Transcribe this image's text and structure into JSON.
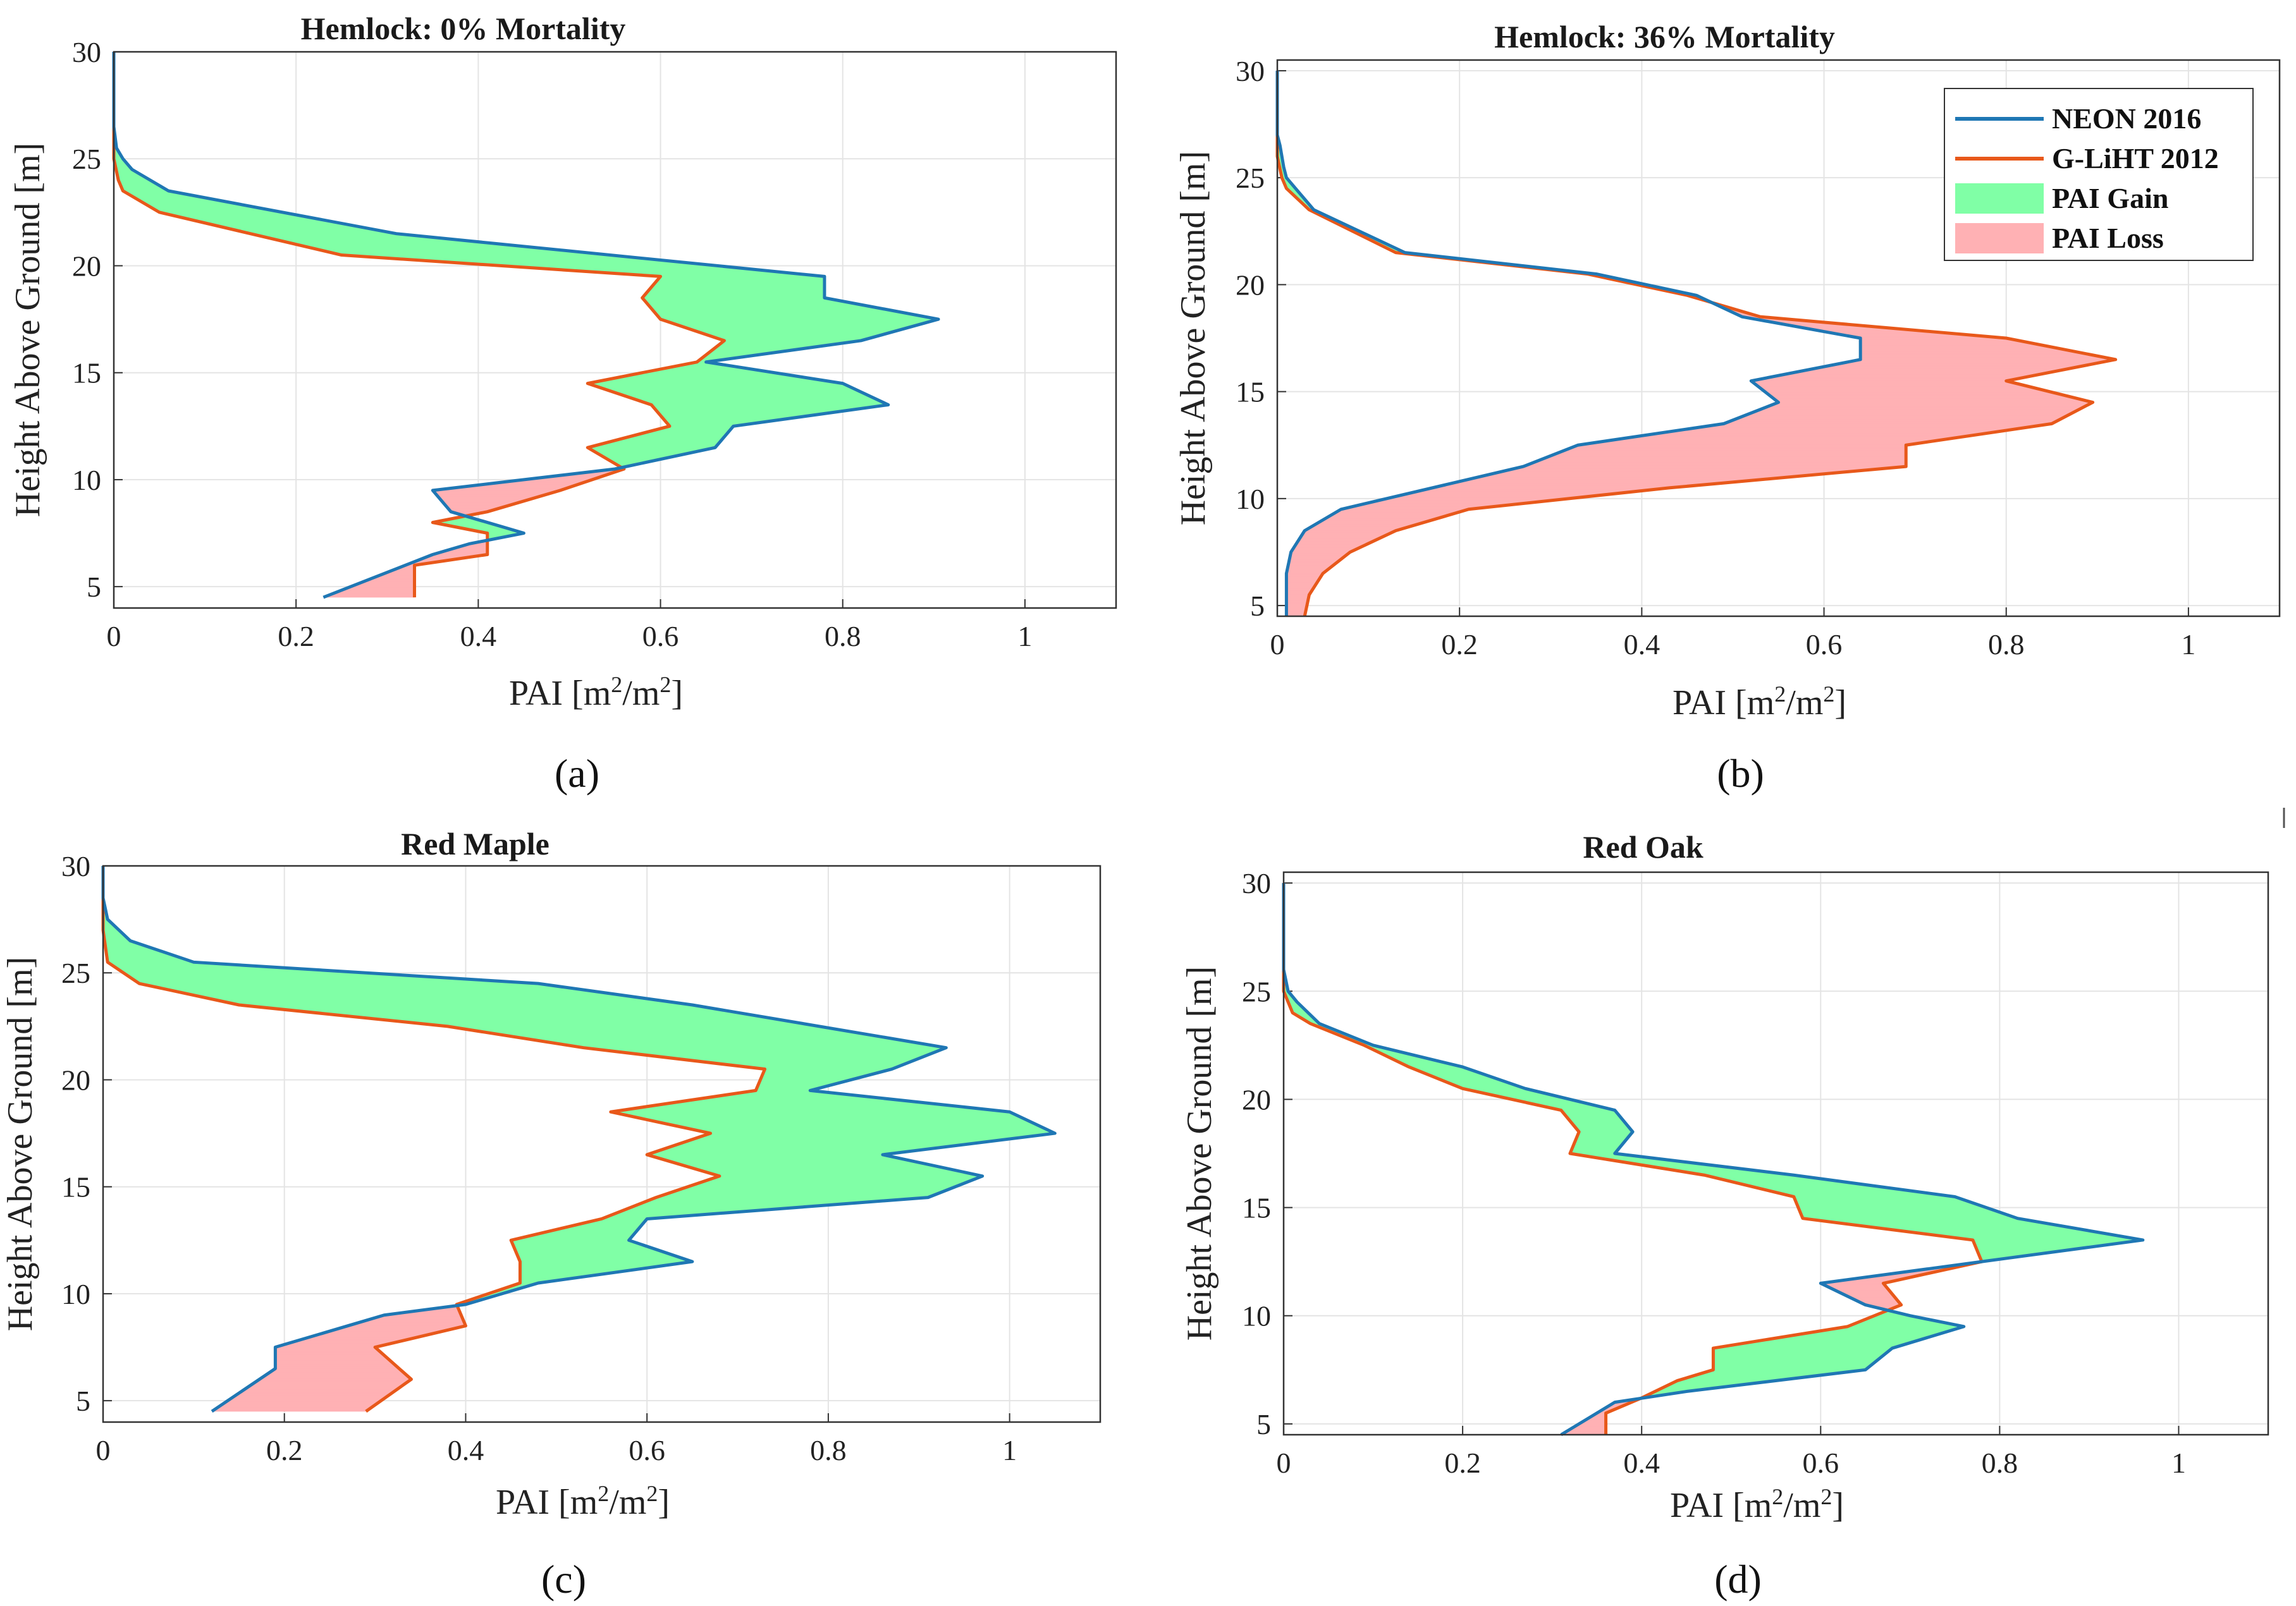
{
  "colors": {
    "neon": "#1f77b4",
    "gliht": "#e8581a",
    "gain": "#80ffa6",
    "loss": "#ffb1b4"
  },
  "legend": {
    "neon": "NEON 2016",
    "gliht": "G-LiHT 2012",
    "gain": "PAI Gain",
    "loss": "PAI Loss"
  },
  "chart_data": [
    {
      "panel": "(a)",
      "type": "line",
      "title": "Hemlock: 0% Mortality",
      "xlabel": "PAI [m²/m²]",
      "ylabel": "Height Above Ground [m]",
      "xlim": [
        0,
        1.1
      ],
      "ylim": [
        4,
        30
      ],
      "xticks": [
        "0",
        "0.2",
        "0.4",
        "0.6",
        "0.8",
        "1"
      ],
      "yticks": [
        "5",
        "10",
        "15",
        "20",
        "25",
        "30"
      ],
      "series": [
        {
          "name": "NEON 2016",
          "points": [
            [
              0,
              30
            ],
            [
              0,
              26.5
            ],
            [
              0.003,
              25.5
            ],
            [
              0.01,
              25
            ],
            [
              0.02,
              24.5
            ],
            [
              0.06,
              23.5
            ],
            [
              0.31,
              21.5
            ],
            [
              0.78,
              19.5
            ],
            [
              0.78,
              18.5
            ],
            [
              0.905,
              17.5
            ],
            [
              0.82,
              16.5
            ],
            [
              0.65,
              15.5
            ],
            [
              0.8,
              14.5
            ],
            [
              0.85,
              13.5
            ],
            [
              0.68,
              12.5
            ],
            [
              0.66,
              11.5
            ],
            [
              0.55,
              10.5
            ],
            [
              0.35,
              9.5
            ],
            [
              0.37,
              8.5
            ],
            [
              0.45,
              7.5
            ],
            [
              0.39,
              7
            ],
            [
              0.35,
              6.5
            ],
            [
              0.23,
              4.5
            ]
          ]
        },
        {
          "name": "G-LiHT 2012",
          "points": [
            [
              0,
              30
            ],
            [
              0,
              26
            ],
            [
              0,
              25
            ],
            [
              0.005,
              24
            ],
            [
              0.01,
              23.5
            ],
            [
              0.05,
              22.5
            ],
            [
              0.25,
              20.5
            ],
            [
              0.6,
              19.5
            ],
            [
              0.58,
              18.5
            ],
            [
              0.6,
              17.5
            ],
            [
              0.67,
              16.5
            ],
            [
              0.64,
              15.5
            ],
            [
              0.52,
              14.5
            ],
            [
              0.59,
              13.5
            ],
            [
              0.61,
              12.5
            ],
            [
              0.52,
              11.5
            ],
            [
              0.56,
              10.5
            ],
            [
              0.49,
              9.5
            ],
            [
              0.41,
              8.5
            ],
            [
              0.35,
              8
            ],
            [
              0.41,
              7.5
            ],
            [
              0.41,
              6.5
            ],
            [
              0.33,
              6
            ],
            [
              0.33,
              4.5
            ]
          ]
        }
      ]
    },
    {
      "panel": "(b)",
      "type": "line",
      "title": "Hemlock: 36% Mortality",
      "xlabel": "PAI [m²/m²]",
      "ylabel": "Height Above Ground [m]",
      "xlim": [
        0,
        1.1
      ],
      "ylim": [
        4.5,
        30.5
      ],
      "xticks": [
        "0",
        "0.2",
        "0.4",
        "0.6",
        "0.8",
        "1"
      ],
      "yticks": [
        "5",
        "10",
        "15",
        "20",
        "25",
        "30"
      ],
      "legend": "top-right",
      "series": [
        {
          "name": "NEON 2016",
          "points": [
            [
              0,
              30
            ],
            [
              0,
              27
            ],
            [
              0.003,
              26.5
            ],
            [
              0.007,
              25.5
            ],
            [
              0.01,
              25
            ],
            [
              0.02,
              24.5
            ],
            [
              0.04,
              23.5
            ],
            [
              0.14,
              21.5
            ],
            [
              0.35,
              20.5
            ],
            [
              0.46,
              19.5
            ],
            [
              0.51,
              18.5
            ],
            [
              0.64,
              17.5
            ],
            [
              0.64,
              16.5
            ],
            [
              0.52,
              15.5
            ],
            [
              0.55,
              14.5
            ],
            [
              0.49,
              13.5
            ],
            [
              0.33,
              12.5
            ],
            [
              0.27,
              11.5
            ],
            [
              0.07,
              9.5
            ],
            [
              0.03,
              8.5
            ],
            [
              0.015,
              7.5
            ],
            [
              0.01,
              6.5
            ],
            [
              0.01,
              4.5
            ]
          ]
        },
        {
          "name": "G-LiHT 2012",
          "points": [
            [
              0,
              30
            ],
            [
              0,
              27
            ],
            [
              0,
              26
            ],
            [
              0.005,
              25
            ],
            [
              0.01,
              24.5
            ],
            [
              0.035,
              23.5
            ],
            [
              0.13,
              21.5
            ],
            [
              0.34,
              20.5
            ],
            [
              0.45,
              19.5
            ],
            [
              0.53,
              18.5
            ],
            [
              0.8,
              17.5
            ],
            [
              0.92,
              16.5
            ],
            [
              0.8,
              15.5
            ],
            [
              0.895,
              14.5
            ],
            [
              0.85,
              13.5
            ],
            [
              0.69,
              12.5
            ],
            [
              0.69,
              11.5
            ],
            [
              0.43,
              10.5
            ],
            [
              0.21,
              9.5
            ],
            [
              0.13,
              8.5
            ],
            [
              0.08,
              7.5
            ],
            [
              0.05,
              6.5
            ],
            [
              0.035,
              5.5
            ],
            [
              0.03,
              4.5
            ]
          ]
        }
      ]
    },
    {
      "panel": "(c)",
      "type": "line",
      "title": "Red Maple",
      "xlabel": "PAI [m²/m²]",
      "ylabel": "Height Above Ground [m]",
      "xlim": [
        0,
        1.1
      ],
      "ylim": [
        4,
        30
      ],
      "xticks": [
        "0",
        "0.2",
        "0.4",
        "0.6",
        "0.8",
        "1"
      ],
      "yticks": [
        "5",
        "10",
        "15",
        "20",
        "25",
        "30"
      ],
      "series": [
        {
          "name": "NEON 2016",
          "points": [
            [
              0,
              30
            ],
            [
              0,
              28.5
            ],
            [
              0.005,
              27.5
            ],
            [
              0.03,
              26.5
            ],
            [
              0.1,
              25.5
            ],
            [
              0.48,
              24.5
            ],
            [
              0.65,
              23.5
            ],
            [
              0.93,
              21.5
            ],
            [
              0.87,
              20.5
            ],
            [
              0.78,
              19.5
            ],
            [
              1.0,
              18.5
            ],
            [
              1.05,
              17.5
            ],
            [
              0.86,
              16.5
            ],
            [
              0.97,
              15.5
            ],
            [
              0.91,
              14.5
            ],
            [
              0.6,
              13.5
            ],
            [
              0.58,
              12.5
            ],
            [
              0.65,
              11.5
            ],
            [
              0.48,
              10.5
            ],
            [
              0.4,
              9.5
            ],
            [
              0.31,
              9
            ],
            [
              0.27,
              8.5
            ],
            [
              0.19,
              7.5
            ],
            [
              0.19,
              6.5
            ],
            [
              0.12,
              4.5
            ]
          ]
        },
        {
          "name": "G-LiHT 2012",
          "points": [
            [
              0,
              30
            ],
            [
              0,
              28
            ],
            [
              0,
              27
            ],
            [
              0.005,
              25.5
            ],
            [
              0.04,
              24.5
            ],
            [
              0.15,
              23.5
            ],
            [
              0.38,
              22.5
            ],
            [
              0.53,
              21.5
            ],
            [
              0.73,
              20.5
            ],
            [
              0.72,
              19.5
            ],
            [
              0.56,
              18.5
            ],
            [
              0.67,
              17.5
            ],
            [
              0.6,
              16.5
            ],
            [
              0.68,
              15.5
            ],
            [
              0.61,
              14.5
            ],
            [
              0.55,
              13.5
            ],
            [
              0.45,
              12.5
            ],
            [
              0.46,
              11.5
            ],
            [
              0.46,
              10.5
            ],
            [
              0.39,
              9.5
            ],
            [
              0.4,
              8.5
            ],
            [
              0.3,
              7.5
            ],
            [
              0.34,
              6
            ],
            [
              0.29,
              4.5
            ]
          ]
        }
      ]
    },
    {
      "panel": "(d)",
      "type": "line",
      "title": "Red Oak",
      "xlabel": "PAI [m²/m²]",
      "ylabel": "Height Above Ground [m]",
      "xlim": [
        0,
        1.1
      ],
      "ylim": [
        4.5,
        30.5
      ],
      "xticks": [
        "0",
        "0.2",
        "0.4",
        "0.6",
        "0.8",
        "1"
      ],
      "yticks": [
        "5",
        "10",
        "15",
        "20",
        "25",
        "30"
      ],
      "series": [
        {
          "name": "NEON 2016",
          "points": [
            [
              0,
              30
            ],
            [
              0,
              26
            ],
            [
              0.005,
              25
            ],
            [
              0.015,
              24.5
            ],
            [
              0.04,
              23.5
            ],
            [
              0.1,
              22.5
            ],
            [
              0.2,
              21.5
            ],
            [
              0.27,
              20.5
            ],
            [
              0.37,
              19.5
            ],
            [
              0.39,
              18.5
            ],
            [
              0.37,
              17.5
            ],
            [
              0.57,
              16.5
            ],
            [
              0.75,
              15.5
            ],
            [
              0.82,
              14.5
            ],
            [
              0.96,
              13.5
            ],
            [
              0.78,
              12.5
            ],
            [
              0.6,
              11.5
            ],
            [
              0.65,
              10.5
            ],
            [
              0.7,
              10
            ],
            [
              0.76,
              9.5
            ],
            [
              0.68,
              8.5
            ],
            [
              0.65,
              7.5
            ],
            [
              0.45,
              6.5
            ],
            [
              0.37,
              6
            ],
            [
              0.35,
              5.5
            ],
            [
              0.31,
              4.5
            ]
          ]
        },
        {
          "name": "G-LiHT 2012",
          "points": [
            [
              0,
              30
            ],
            [
              0,
              26
            ],
            [
              0,
              25
            ],
            [
              0.01,
              24
            ],
            [
              0.03,
              23.5
            ],
            [
              0.09,
              22.5
            ],
            [
              0.14,
              21.5
            ],
            [
              0.2,
              20.5
            ],
            [
              0.31,
              19.5
            ],
            [
              0.33,
              18.5
            ],
            [
              0.32,
              17.5
            ],
            [
              0.47,
              16.5
            ],
            [
              0.57,
              15.5
            ],
            [
              0.58,
              14.5
            ],
            [
              0.77,
              13.5
            ],
            [
              0.78,
              12.5
            ],
            [
              0.67,
              11.5
            ],
            [
              0.69,
              10.5
            ],
            [
              0.63,
              9.5
            ],
            [
              0.48,
              8.5
            ],
            [
              0.48,
              7.5
            ],
            [
              0.44,
              7
            ],
            [
              0.4,
              6.2
            ],
            [
              0.36,
              5.5
            ],
            [
              0.36,
              4.5
            ]
          ]
        }
      ]
    }
  ]
}
